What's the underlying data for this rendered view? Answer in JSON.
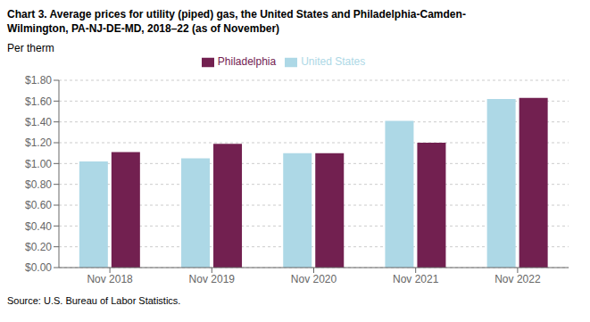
{
  "chart_data": {
    "type": "bar",
    "title": "Chart 3. Average prices for utility (piped) gas, the United States and Philadelphia-Camden-\nWilmington, PA-NJ-DE-MD, 2018–22 (as of November)",
    "y_label": "Per therm",
    "source": "Source: U.S. Bureau of Labor Statistics.",
    "categories": [
      "Nov 2018",
      "Nov 2019",
      "Nov 2020",
      "Nov 2021",
      "Nov 2022"
    ],
    "series": [
      {
        "name": "United States",
        "color": "#add8e6",
        "values": [
          1.02,
          1.05,
          1.1,
          1.41,
          1.62
        ]
      },
      {
        "name": "Philadelphia",
        "color": "#722050",
        "values": [
          1.11,
          1.19,
          1.1,
          1.2,
          1.63
        ]
      }
    ],
    "ylim": [
      0,
      1.8
    ],
    "yticks": [
      {
        "value": 0.0,
        "label": "$0.00"
      },
      {
        "value": 0.2,
        "label": "$0.20"
      },
      {
        "value": 0.4,
        "label": "$0.40"
      },
      {
        "value": 0.6,
        "label": "$0.60"
      },
      {
        "value": 0.8,
        "label": "$0.80"
      },
      {
        "value": 1.0,
        "label": "$1.00"
      },
      {
        "value": 1.2,
        "label": "$1.20"
      },
      {
        "value": 1.4,
        "label": "$1.40"
      },
      {
        "value": 1.6,
        "label": "$1.60"
      },
      {
        "value": 1.8,
        "label": "$1.80"
      }
    ],
    "grid": true,
    "legend": "top"
  }
}
